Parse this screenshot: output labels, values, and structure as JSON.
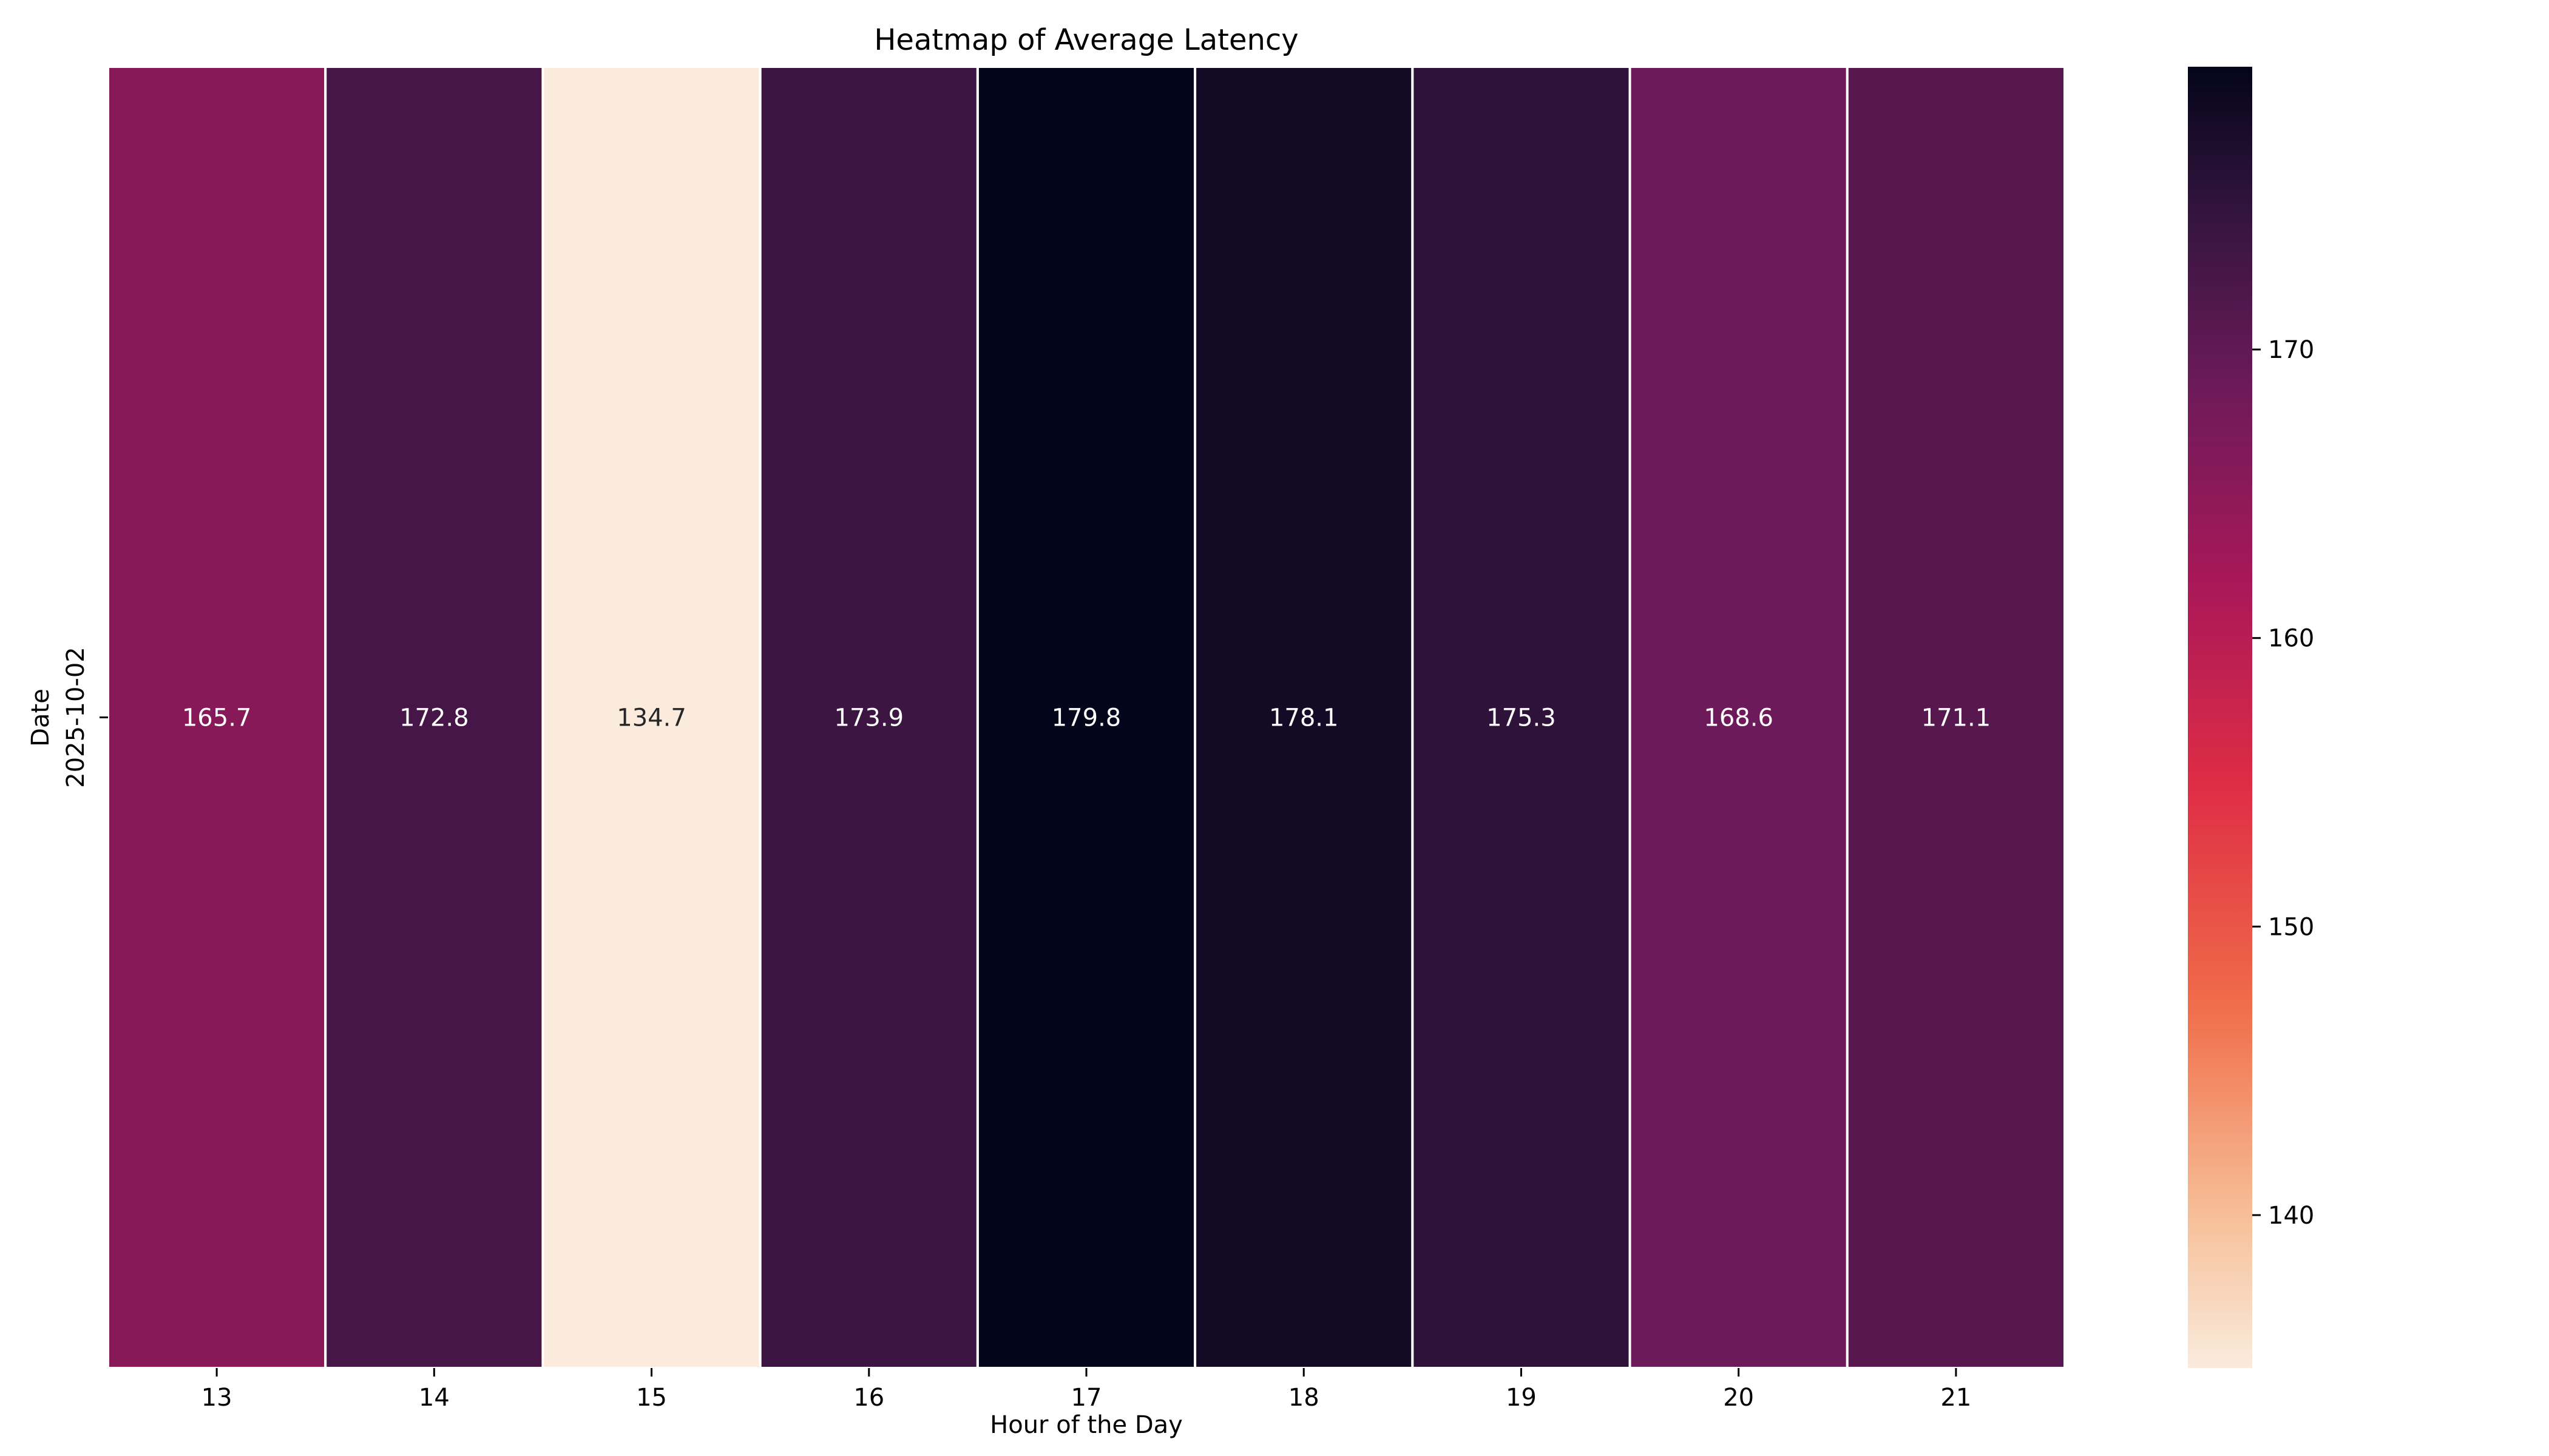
{
  "chart_data": {
    "type": "heatmap",
    "title": "Heatmap of Average Latency",
    "xlabel": "Hour of the Day",
    "ylabel": "Date",
    "x_categories": [
      "13",
      "14",
      "15",
      "16",
      "17",
      "18",
      "19",
      "20",
      "21"
    ],
    "y_categories": [
      "2025-10-02"
    ],
    "values": [
      [
        165.7,
        172.8,
        134.7,
        173.9,
        179.8,
        178.1,
        175.3,
        168.6,
        171.1
      ]
    ],
    "value_labels": [
      [
        "165.7",
        "172.8",
        "134.7",
        "173.9",
        "179.8",
        "178.1",
        "175.3",
        "168.6",
        "171.1"
      ]
    ],
    "colormap": "rocket_r",
    "colorbar": {
      "range": [
        134.7,
        179.8
      ],
      "ticks": [
        140,
        150,
        160,
        170
      ],
      "tick_labels": [
        "140",
        "150",
        "160",
        "170"
      ]
    },
    "cell_separator_color": "#ffffff"
  }
}
